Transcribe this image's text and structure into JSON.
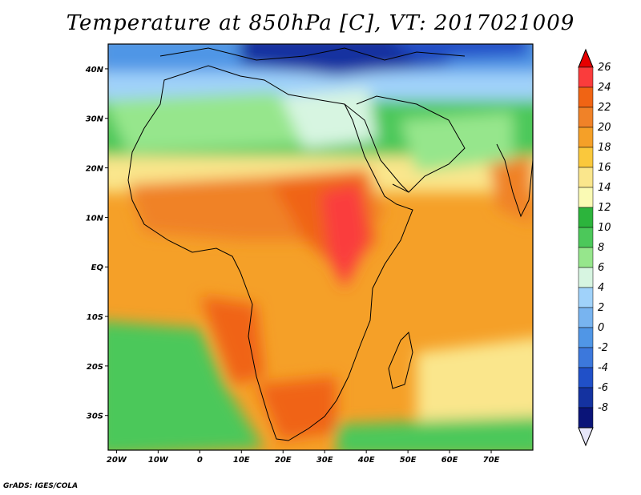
{
  "title": "Temperature at 850hPa [C], VT: 2017021009",
  "credit": "GrADS: IGES/COLA",
  "map": {
    "lon_range": [
      -22,
      80
    ],
    "lat_range": [
      -37,
      45
    ],
    "lon_ticks": [
      "20W",
      "10W",
      "0",
      "10E",
      "20E",
      "30E",
      "40E",
      "50E",
      "60E",
      "70E"
    ],
    "lat_ticks": [
      "40N",
      "30N",
      "20N",
      "10N",
      "EQ",
      "10S",
      "20S",
      "30S"
    ],
    "lon_tick_values": [
      -20,
      -10,
      0,
      10,
      20,
      30,
      40,
      50,
      60,
      70
    ],
    "lat_tick_values": [
      40,
      30,
      20,
      10,
      0,
      -10,
      -20,
      -30
    ]
  },
  "colorbar": {
    "labels": [
      "26",
      "24",
      "22",
      "20",
      "18",
      "16",
      "14",
      "12",
      "10",
      "8",
      "6",
      "4",
      "2",
      "0",
      "-2",
      "-4",
      "-6",
      "-8"
    ],
    "colors": [
      "#fa3c3c",
      "#f06414",
      "#f08228",
      "#f5a028",
      "#fac83c",
      "#fae68c",
      "#fafab4",
      "#2cb43c",
      "#4cc85a",
      "#96e68c",
      "#d7f5e1",
      "#a0d2fa",
      "#78b4f0",
      "#5096e6",
      "#3c78dc",
      "#2050c8",
      "#1432a0",
      "#0a1478"
    ],
    "top_arrow_color": "#e60000",
    "bottom_arrow_color": "#e6e6fa"
  }
}
